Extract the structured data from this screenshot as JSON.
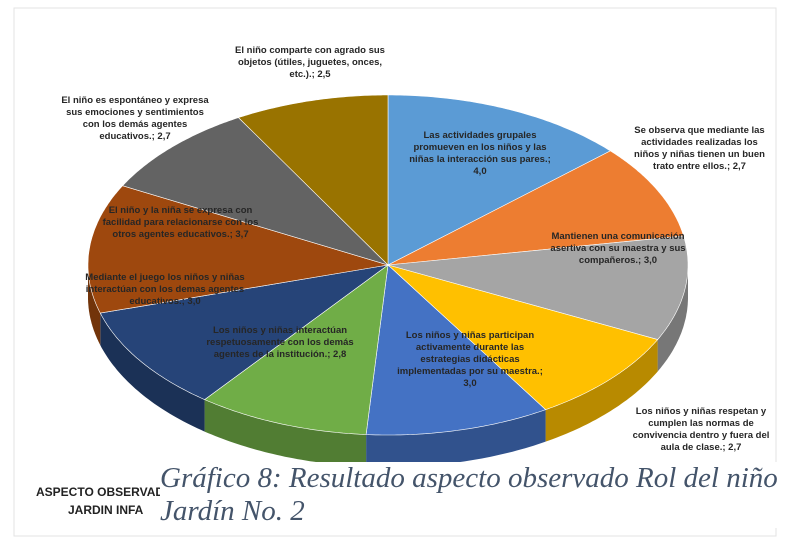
{
  "chart_data": {
    "type": "pie3d",
    "values": [
      4.0,
      2.7,
      3.0,
      2.7,
      3.0,
      2.8,
      3.0,
      3.7,
      2.7,
      2.5
    ],
    "value_labels": [
      "Las actividades grupales promueven en los niños y las niñas la  interacción sus pares.; 4,0",
      "Se observa que mediante las actividades realizadas los niños y niñas tienen un buen trato entre ellos.; 2,7",
      "Mantienen una comunicación asertiva con su maestra y  sus compañeros.; 3,0",
      "Los niños y niñas respetan y cumplen las normas de convivencia dentro y fuera del aula de clase.; 2,7",
      "Los niños y niñas participan activamente durante las estrategias didácticas implementadas por su maestra.; 3,0",
      "Los niños y niñas interactúan respetuosamente con los demás agentes de la institución.; 2,8",
      "Mediante el juego los niños y niñas interactúan  con los demas agentes educativos.; 3,0",
      "El niño y la niña se expresa con facilidad para relacionarse con los otros agentes educativos.; 3,7",
      "El niño es espontáneo y expresa sus emociones y sentimientos con los demás agentes educativos.; 2,7",
      "El niño comparte con agrado sus objetos (útiles, juguetes, onces, etc.).; 2,5"
    ],
    "colors": [
      "#5b9bd5",
      "#ed7d31",
      "#a5a5a5",
      "#ffc000",
      "#4472c4",
      "#70ad47",
      "#264478",
      "#9e480e",
      "#636363",
      "#997300"
    ],
    "axis_title_lines": [
      "ASPECTO OBSERVAD",
      "JARDIN INFA"
    ],
    "caption_lines": [
      "Gráfico 8: Resultado aspecto observado Rol del niño",
      "Jardín No. 2"
    ]
  }
}
